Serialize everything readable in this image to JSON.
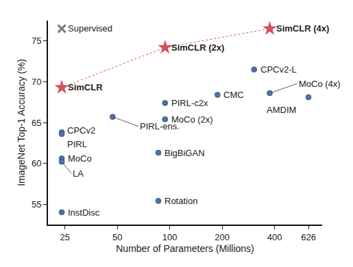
{
  "chart_data": {
    "type": "scatter",
    "x_label": "Number of Parameters (Millions)",
    "y_label": "ImageNet Top-1 Accuracy (%)",
    "log": "x",
    "xlim": [
      20,
      750
    ],
    "xticks": [
      25,
      50,
      100,
      200,
      400,
      626
    ],
    "ylim": [
      52.5,
      77.5
    ],
    "yticks": [
      55,
      60,
      65,
      70,
      75
    ],
    "grid": false,
    "series": [
      {
        "color": "#7a7a7a",
        "marker": "x",
        "x": [
          24
        ],
        "values": [
          76.5
        ],
        "point_labels": [
          "Supervised"
        ]
      },
      {
        "color": "#d1535a",
        "marker": "star",
        "line_style": "dotted",
        "x": [
          24,
          94,
          375
        ],
        "values": [
          69.3,
          74.2,
          76.5
        ],
        "point_labels": [
          "SimCLR",
          "SimCLR (2x)",
          "SimCLR (4x)"
        ]
      },
      {
        "color": "#4f6fa8",
        "marker": "circle",
        "x": [
          24,
          24,
          24,
          24,
          24,
          47,
          86,
          86,
          94,
          94,
          188,
          305,
          375,
          626
        ],
        "values": [
          63.8,
          63.6,
          60.6,
          60.2,
          54.0,
          65.7,
          61.3,
          55.4,
          67.4,
          65.4,
          68.4,
          71.5,
          68.6,
          68.1
        ],
        "point_labels": [
          "CPCv2",
          "PIRL",
          "MoCo",
          "LA",
          "InstDisc",
          "PIRL-ens.",
          "BigBiGAN",
          "Rotation",
          "PIRL-c2x",
          "MoCo (2x)",
          "CMC",
          "CPCv2-L",
          "MoCo (4x)",
          "AMDIM"
        ]
      }
    ]
  }
}
